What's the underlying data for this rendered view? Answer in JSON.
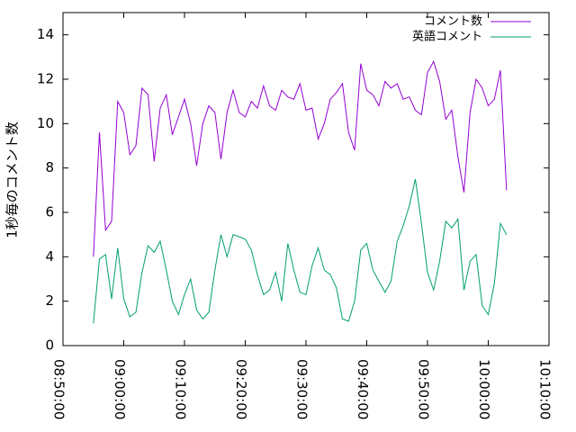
{
  "chart_data": {
    "type": "line",
    "ylabel": "1秒毎のコメント数",
    "x": [
      "08:55:00",
      "08:56:00",
      "08:57:00",
      "08:58:00",
      "08:59:00",
      "09:00:00",
      "09:01:00",
      "09:02:00",
      "09:03:00",
      "09:04:00",
      "09:05:00",
      "09:06:00",
      "09:07:00",
      "09:08:00",
      "09:09:00",
      "09:10:00",
      "09:11:00",
      "09:12:00",
      "09:13:00",
      "09:14:00",
      "09:15:00",
      "09:16:00",
      "09:17:00",
      "09:18:00",
      "09:19:00",
      "09:20:00",
      "09:21:00",
      "09:22:00",
      "09:23:00",
      "09:24:00",
      "09:25:00",
      "09:26:00",
      "09:27:00",
      "09:28:00",
      "09:29:00",
      "09:30:00",
      "09:31:00",
      "09:32:00",
      "09:33:00",
      "09:34:00",
      "09:35:00",
      "09:36:00",
      "09:37:00",
      "09:38:00",
      "09:39:00",
      "09:40:00",
      "09:41:00",
      "09:42:00",
      "09:43:00",
      "09:44:00",
      "09:45:00",
      "09:46:00",
      "09:47:00",
      "09:48:00",
      "09:49:00",
      "09:50:00",
      "09:51:00",
      "09:52:00",
      "09:53:00",
      "09:54:00",
      "09:55:00",
      "09:56:00",
      "09:57:00",
      "09:58:00",
      "09:59:00",
      "10:00:00",
      "10:01:00",
      "10:02:00",
      "10:03:00"
    ],
    "series": [
      {
        "name": "コメント数",
        "color": "#9400d3",
        "values": [
          4.0,
          9.6,
          5.2,
          5.6,
          11.0,
          10.5,
          8.6,
          9.0,
          11.6,
          11.3,
          8.3,
          10.7,
          11.3,
          9.5,
          10.3,
          11.1,
          10.0,
          8.1,
          10.0,
          10.8,
          10.5,
          8.4,
          10.5,
          11.5,
          10.5,
          10.3,
          11.0,
          10.7,
          11.7,
          10.8,
          10.6,
          11.5,
          11.2,
          11.1,
          11.8,
          10.6,
          10.7,
          9.3,
          10.0,
          11.1,
          11.4,
          11.8,
          9.6,
          8.8,
          12.7,
          11.5,
          11.3,
          10.8,
          11.9,
          11.6,
          11.8,
          11.1,
          11.2,
          10.6,
          10.4,
          12.3,
          12.8,
          11.9,
          10.2,
          10.6,
          8.5,
          6.9,
          10.5,
          12.0,
          11.6,
          10.8,
          11.1,
          12.4,
          7.0
        ]
      },
      {
        "name": "英語コメント",
        "color": "#009e73",
        "values": [
          1.0,
          3.9,
          4.1,
          2.1,
          4.4,
          2.1,
          1.3,
          1.5,
          3.3,
          4.5,
          4.2,
          4.7,
          3.4,
          2.0,
          1.4,
          2.3,
          3.0,
          1.6,
          1.2,
          1.5,
          3.4,
          5.0,
          4.0,
          5.0,
          4.9,
          4.8,
          4.3,
          3.2,
          2.3,
          2.5,
          3.3,
          2.0,
          4.6,
          3.4,
          2.4,
          2.3,
          3.6,
          4.4,
          3.4,
          3.2,
          2.6,
          1.2,
          1.1,
          2.0,
          4.3,
          4.6,
          3.4,
          2.9,
          2.4,
          2.9,
          4.7,
          5.4,
          6.3,
          7.5,
          5.5,
          3.3,
          2.5,
          3.8,
          5.6,
          5.3,
          5.7,
          2.5,
          3.8,
          4.1,
          1.8,
          1.4,
          2.8,
          5.5,
          5.0
        ]
      }
    ],
    "xlim": [
      "08:50:00",
      "10:10:00"
    ],
    "xticks": [
      "08:50:00",
      "09:00:00",
      "09:10:00",
      "09:20:00",
      "09:30:00",
      "09:40:00",
      "09:50:00",
      "10:00:00",
      "10:10:00"
    ],
    "ylim": [
      0,
      15
    ],
    "yticks": [
      0,
      2,
      4,
      6,
      8,
      10,
      12,
      14
    ],
    "legend": "top-right"
  }
}
